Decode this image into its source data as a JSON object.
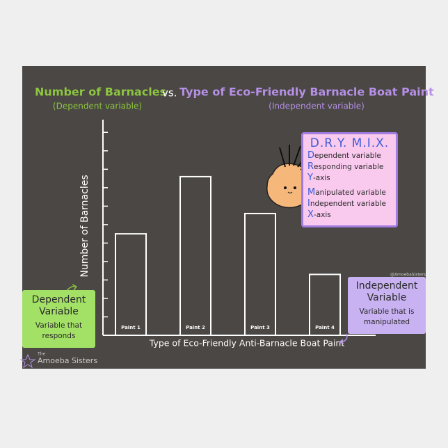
{
  "chart_data": {
    "type": "bar",
    "title": {
      "part1": "Number of Barnacles",
      "part2": "vs.",
      "part3": "Type of Eco-Friendly Barnacle Boat Paint"
    },
    "subtitle_left": "(Dependent variable)",
    "subtitle_right": "(Independent variable)",
    "y_label": "Number of Barnacles",
    "x_label": "Type of Eco-Friendly Anti-Barnacle Boat Paint",
    "categories": [
      "Paint 1",
      "Paint 2",
      "Paint 3",
      "Paint 4"
    ],
    "values": [
      5.5,
      8.6,
      6.6,
      3.3
    ],
    "color": "#ffffff",
    "ylim": [
      0,
      11.5
    ],
    "yticks": [
      1,
      2,
      3,
      4,
      5,
      6,
      7,
      8,
      9,
      10,
      11
    ]
  },
  "dry_mix": {
    "title": "D.R.Y. M.I.X.",
    "lines": [
      "Dependent variable",
      "Responding variable",
      "Y-axis",
      "Manipulated variable",
      "Independent variable",
      "X-axis"
    ]
  },
  "dependent_box": {
    "title": "Dependent Variable",
    "text": "Variable that responds"
  },
  "independent_box": {
    "title": "Independent Variable",
    "text": "Variable that is manipulated"
  },
  "handle": "@AmoebaSisters",
  "logo": {
    "small": "The",
    "name": "Amoeba Sisters"
  }
}
